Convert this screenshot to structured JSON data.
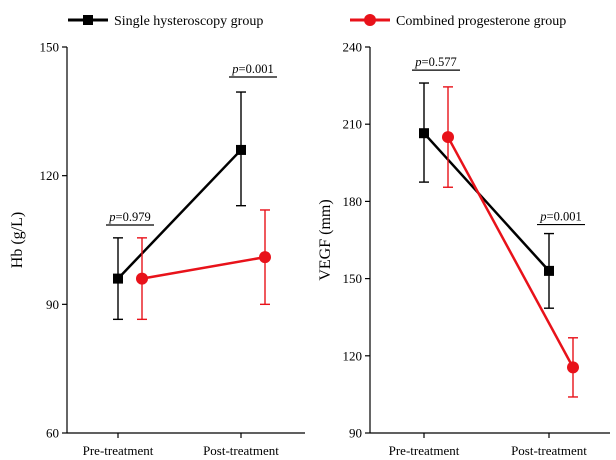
{
  "legend": {
    "items": [
      {
        "label": "Single hysteroscopy group",
        "color": "#000000",
        "marker": "square"
      },
      {
        "label": "Combined progesterone group",
        "color": "#e8121a",
        "marker": "circle"
      }
    ]
  },
  "chart_data": [
    {
      "type": "line",
      "title": "",
      "xlabel": "",
      "ylabel": "Hb (g/L)",
      "categories": [
        "Pre-treatment",
        "Post-treatment"
      ],
      "ylim": [
        60,
        150
      ],
      "yticks": [
        60,
        90,
        120,
        150
      ],
      "grid": false,
      "legend_position": "top",
      "series": [
        {
          "name": "Single hysteroscopy group",
          "color": "#000000",
          "marker": "square",
          "values": [
            96,
            126
          ],
          "error_low": [
            86.5,
            113
          ],
          "error_high": [
            105.5,
            139.5
          ]
        },
        {
          "name": "Combined progesterone group",
          "color": "#e8121a",
          "marker": "circle",
          "values": [
            96,
            101
          ],
          "error_low": [
            86.5,
            90
          ],
          "error_high": [
            105.5,
            112
          ]
        }
      ],
      "annotations": [
        {
          "category": "Pre-treatment",
          "p_prefix": "p",
          "p_value": "=0.979",
          "y": 108.5
        },
        {
          "category": "Post-treatment",
          "p_prefix": "p",
          "p_value": "=0.001",
          "y": 143
        }
      ]
    },
    {
      "type": "line",
      "title": "",
      "xlabel": "",
      "ylabel": "VEGF (mm)",
      "categories": [
        "Pre-treatment",
        "Post-treatment"
      ],
      "ylim": [
        90,
        240
      ],
      "yticks": [
        90,
        120,
        150,
        180,
        210,
        240
      ],
      "grid": false,
      "legend_position": "top",
      "series": [
        {
          "name": "Single hysteroscopy group",
          "color": "#000000",
          "marker": "square",
          "values": [
            206.5,
            153
          ],
          "error_low": [
            187.5,
            138.5
          ],
          "error_high": [
            226,
            167.5
          ]
        },
        {
          "name": "Combined progesterone group",
          "color": "#e8121a",
          "marker": "circle",
          "values": [
            205,
            115.5
          ],
          "error_low": [
            185.5,
            104
          ],
          "error_high": [
            224.5,
            127
          ]
        }
      ],
      "annotations": [
        {
          "category": "Pre-treatment",
          "p_prefix": "p",
          "p_value": "=0.577",
          "y": 231
        },
        {
          "category": "Post-treatment",
          "p_prefix": "p",
          "p_value": "=0.001",
          "y": 171
        }
      ]
    }
  ]
}
